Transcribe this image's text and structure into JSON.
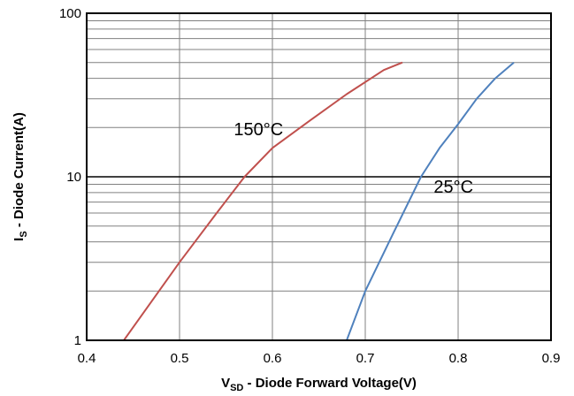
{
  "chart_data": {
    "type": "line",
    "xlabel": {
      "main": "V",
      "sub": "SD",
      "rest": " - Diode Forward Voltage(V)"
    },
    "ylabel": {
      "main": "I",
      "sub": "S",
      "rest": " - Diode Current(A)"
    },
    "xlim": [
      0.4,
      0.9
    ],
    "ylim": [
      1,
      100
    ],
    "yscale": "log",
    "grid": true,
    "x_ticks": [
      "0.4",
      "0.5",
      "0.6",
      "0.7",
      "0.8",
      "0.9"
    ],
    "y_ticks": [
      "1",
      "10",
      "100"
    ],
    "series": [
      {
        "name": "150°C",
        "color": "#c0504d",
        "x": [
          0.44,
          0.5,
          0.54,
          0.57,
          0.6,
          0.64,
          0.68,
          0.72,
          0.74
        ],
        "y": [
          1,
          3,
          6,
          10,
          15,
          22,
          32,
          45,
          50
        ]
      },
      {
        "name": "25°C",
        "color": "#4f81bd",
        "x": [
          0.68,
          0.7,
          0.73,
          0.76,
          0.78,
          0.8,
          0.82,
          0.84,
          0.86
        ],
        "y": [
          1,
          2,
          4.5,
          10,
          15,
          21,
          30,
          40,
          50
        ]
      }
    ],
    "annotations": [
      {
        "text": "150°C",
        "x": 0.585,
        "y": 18
      },
      {
        "text": "25°C",
        "x": 0.795,
        "y": 8
      }
    ]
  }
}
